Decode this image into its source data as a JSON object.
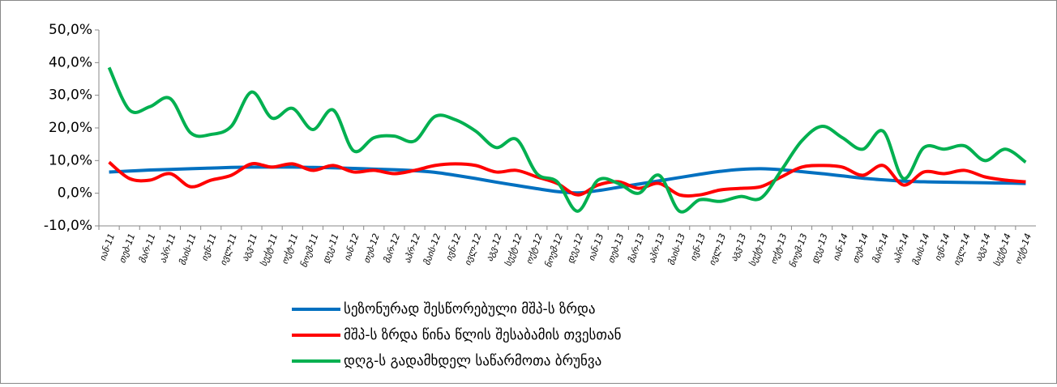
{
  "chart_data": {
    "type": "line",
    "categories": [
      "იან-11",
      "თებ-11",
      "მარ-11",
      "აპრ-11",
      "მაის-11",
      "ივნ-11",
      "ივლ-11",
      "აგვ-11",
      "სექტ-11",
      "ოქტ-11",
      "ნოემ-11",
      "დეკ-11",
      "იან-12",
      "თებ-12",
      "მარ-12",
      "აპრ-12",
      "მაის-12",
      "ივნ-12",
      "ივლ-12",
      "აგვ-12",
      "სექტ-12",
      "ოქტ-12",
      "ნოემ-12",
      "დეკ-12",
      "იან-13",
      "თებ-13",
      "მარ-13",
      "აპრ-13",
      "მაის-13",
      "ივნ-13",
      "ივლ-13",
      "აგვ-13",
      "სექტ-13",
      "ოქტ-13",
      "ნოემ-13",
      "დეკ-13",
      "იან-14",
      "თებ-14",
      "მარ-14",
      "აპრ-14",
      "მაის-14",
      "ივნ-14",
      "ივლ-14",
      "აგვ-14",
      "სექტ-14",
      "ოქტ-14"
    ],
    "series": [
      {
        "name": "სეზონურად შესწორებული მშპ-ს ზრდა",
        "color": "#0070c0",
        "values": [
          6.5,
          6.8,
          7.1,
          7.3,
          7.5,
          7.7,
          7.9,
          8.0,
          8.0,
          8.0,
          7.9,
          7.8,
          7.6,
          7.4,
          7.2,
          6.9,
          6.4,
          5.5,
          4.5,
          3.4,
          2.4,
          1.4,
          0.5,
          0.1,
          0.8,
          1.8,
          2.8,
          3.8,
          4.8,
          5.8,
          6.7,
          7.3,
          7.5,
          7.2,
          6.6,
          6.0,
          5.3,
          4.6,
          4.1,
          3.7,
          3.5,
          3.4,
          3.3,
          3.2,
          3.1,
          3.0
        ]
      },
      {
        "name": "მშპ-ს ზრდა წინა წლის შესაბამის თვესთან",
        "color": "#ff0000",
        "values": [
          9.5,
          4.5,
          4,
          6,
          2,
          4,
          5.5,
          9,
          8,
          9,
          7,
          8.5,
          6.5,
          7,
          6,
          7,
          8.5,
          9,
          8.5,
          6.5,
          7,
          5,
          3,
          -0.5,
          2.5,
          3.5,
          1.5,
          3,
          -0.5,
          -0.5,
          1,
          1.5,
          2,
          5,
          8,
          8.5,
          8,
          5.5,
          8.5,
          2.5,
          6.5,
          6,
          7,
          5,
          4,
          3.5
        ]
      },
      {
        "name": "დღგ-ს გადამხდელ საწარმოთა ბრუნვა",
        "color": "#00b050",
        "values": [
          38.5,
          25.5,
          26.5,
          29,
          18.5,
          18,
          20.5,
          31,
          23,
          26,
          19.5,
          25.5,
          13,
          17,
          17.5,
          16,
          23.5,
          22.5,
          19,
          14,
          16.5,
          6,
          3.5,
          -5.5,
          4,
          3,
          0,
          5.5,
          -5.5,
          -2,
          -2.5,
          -1,
          -1.5,
          7,
          16,
          20.5,
          17,
          13.5,
          19,
          4.5,
          14,
          13.5,
          14.5,
          10,
          13.5,
          9.5
        ]
      }
    ],
    "ylim": [
      -10,
      50
    ],
    "yticks": [
      {
        "value": -10,
        "label": "-10,0%"
      },
      {
        "value": 0,
        "label": "0,0%"
      },
      {
        "value": 10,
        "label": "10,0%"
      },
      {
        "value": 20,
        "label": "20,0%"
      },
      {
        "value": 30,
        "label": "30,0%"
      },
      {
        "value": 40,
        "label": "40,0%"
      },
      {
        "value": 50,
        "label": "50,0%"
      }
    ],
    "grid": false
  }
}
